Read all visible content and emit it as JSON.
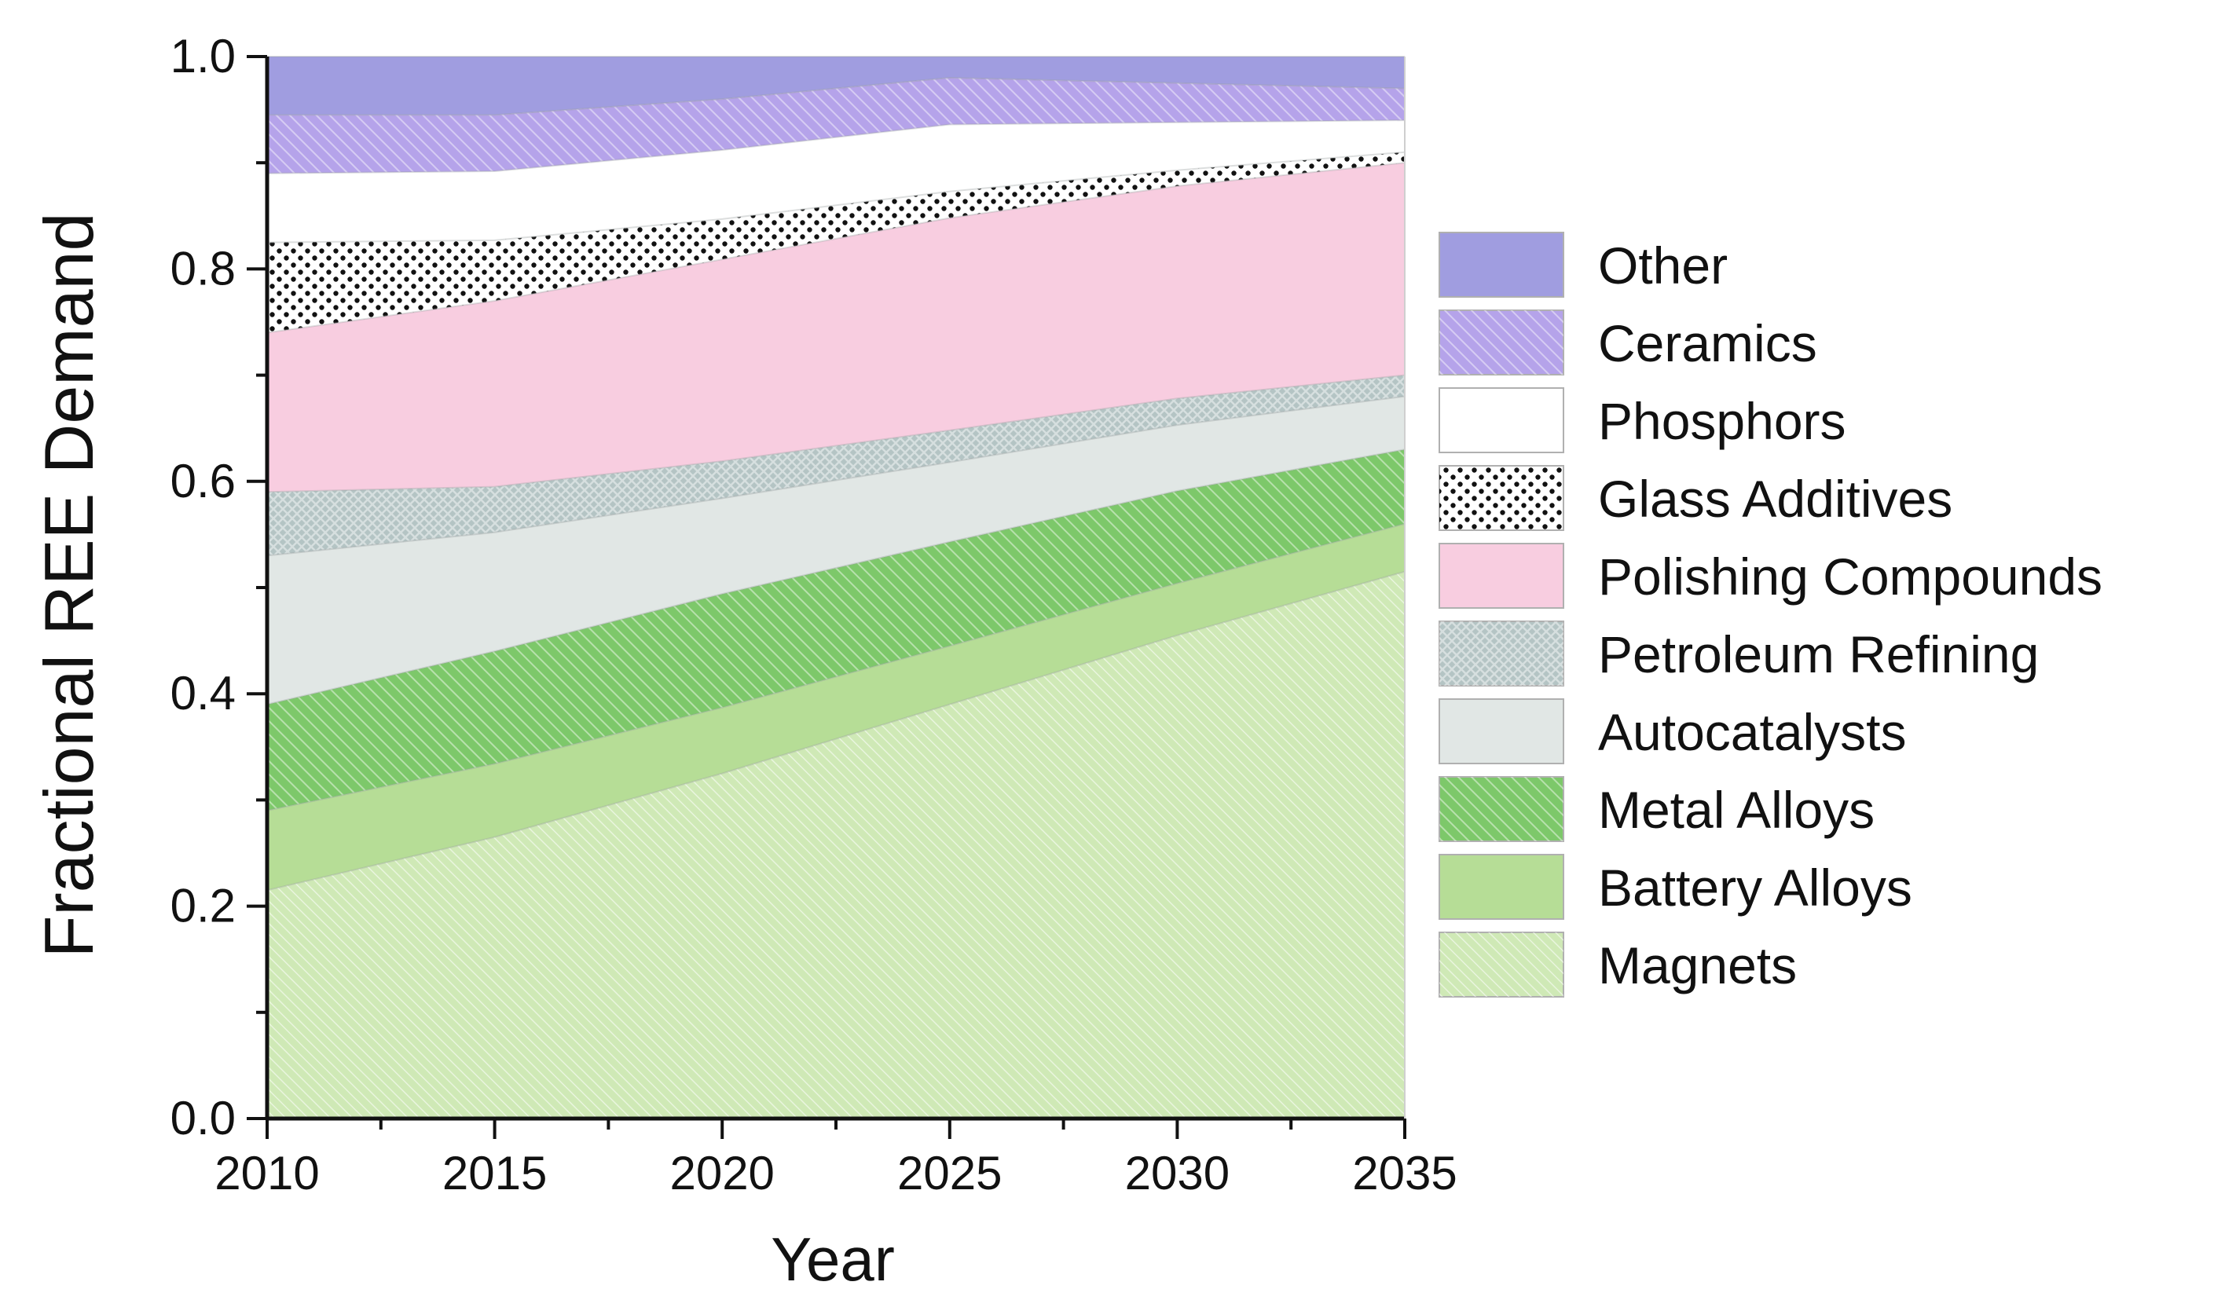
{
  "chart_data": {
    "type": "area",
    "stacked": true,
    "x": [
      2010,
      2015,
      2020,
      2025,
      2030,
      2035
    ],
    "xlim": [
      2010,
      2035
    ],
    "ylim": [
      0,
      1
    ],
    "xticks": [
      "2010",
      "2015",
      "2020",
      "2025",
      "2030",
      "2035"
    ],
    "yticks": [
      "0.0",
      "0.2",
      "0.4",
      "0.6",
      "0.8",
      "1.0"
    ],
    "xlabel": "Year",
    "ylabel": "Fractional REE Demand",
    "title": "",
    "legend_position": "right",
    "series": [
      {
        "name": "Magnets",
        "color": "#cfe9b6",
        "pattern": "fine-hatch",
        "values": [
          0.215,
          0.265,
          0.325,
          0.39,
          0.455,
          0.515
        ]
      },
      {
        "name": "Battery Alloys",
        "color": "#b6dd96",
        "pattern": "solid",
        "values": [
          0.075,
          0.069,
          0.062,
          0.055,
          0.049,
          0.045
        ]
      },
      {
        "name": "Metal Alloys",
        "color": "#7dc86a",
        "pattern": "hatch",
        "values": [
          0.1,
          0.106,
          0.107,
          0.098,
          0.087,
          0.07
        ]
      },
      {
        "name": "Autocatalysts",
        "color": "#e1e7e5",
        "pattern": "solid",
        "values": [
          0.14,
          0.112,
          0.09,
          0.075,
          0.062,
          0.05
        ]
      },
      {
        "name": "Petroleum Refining",
        "color": "#b4c4c4",
        "pattern": "crosshatch",
        "values": [
          0.06,
          0.043,
          0.035,
          0.03,
          0.025,
          0.02
        ]
      },
      {
        "name": "Polishing Compounds",
        "color": "#f8cde0",
        "pattern": "solid",
        "values": [
          0.15,
          0.175,
          0.19,
          0.2,
          0.2,
          0.2
        ]
      },
      {
        "name": "Glass Additives",
        "color": "#ffffff",
        "pattern": "dots",
        "values": [
          0.085,
          0.057,
          0.038,
          0.025,
          0.015,
          0.01
        ]
      },
      {
        "name": "Phosphors",
        "color": "#ffffff",
        "pattern": "solid",
        "values": [
          0.065,
          0.065,
          0.065,
          0.063,
          0.045,
          0.03
        ]
      },
      {
        "name": "Ceramics",
        "color": "#b5a3ea",
        "pattern": "hatch",
        "values": [
          0.055,
          0.053,
          0.048,
          0.044,
          0.037,
          0.03
        ]
      },
      {
        "name": "Other",
        "color": "#a09de0",
        "pattern": "solid",
        "values": [
          0.055,
          0.055,
          0.04,
          0.02,
          0.025,
          0.03
        ]
      }
    ]
  }
}
